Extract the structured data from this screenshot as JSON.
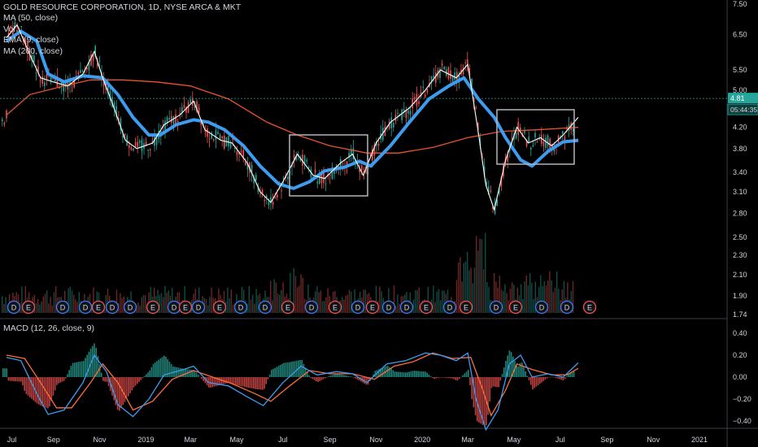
{
  "header": {
    "title": "GOLD RESOURCE CORPORATION, 1D, NYSE ARCA & MKT",
    "indicators": [
      "MA (50, close)",
      "Vol",
      "EMA (9, close)",
      "MA (200, close)"
    ]
  },
  "price_pane": {
    "y_ticks": [
      "7.50",
      "6.50",
      "5.50",
      "5.00",
      "4.20",
      "3.80",
      "3.40",
      "3.10",
      "2.80",
      "2.50",
      "2.30",
      "2.10",
      "1.90",
      "1.74"
    ],
    "last_price": "4.81",
    "countdown": "05:44:35"
  },
  "macd_pane": {
    "label": "MACD (12, 26, close, 9)",
    "y_ticks": [
      "0.40",
      "0.20",
      "0.00",
      "−0.20",
      "−0.40"
    ]
  },
  "x_axis": {
    "labels": [
      "Jul",
      "Sep",
      "Nov",
      "2019",
      "Mar",
      "May",
      "Jul",
      "Sep",
      "Nov",
      "2020",
      "Mar",
      "May",
      "Jul",
      "Sep",
      "Nov",
      "2021"
    ]
  },
  "event_markers": [
    "D",
    "E",
    "D",
    "D",
    "E",
    "D",
    "D",
    "E",
    "D",
    "E",
    "D",
    "E",
    "D",
    "D",
    "E",
    "D",
    "E",
    "D",
    "E",
    "D",
    "D",
    "E",
    "D",
    "E",
    "D",
    "E",
    "D",
    "D",
    "E"
  ],
  "colors": {
    "ma50": "#3d9cf0",
    "ema9": "#ffffff",
    "ma200": "#e8542c",
    "up": "#26a69a",
    "down": "#ef5350",
    "macd_line": "#3d9cf0",
    "signal_line": "#ff6d3a",
    "box": "#b2b5be",
    "price_tag": "#26a69a",
    "dividend_marker": "#3d7bf0",
    "earnings_marker": "#ef5350"
  },
  "chart_data": [
    {
      "type": "line",
      "title": "GOLD RESOURCE CORPORATION, 1D, NYSE ARCA & MKT",
      "x_range": [
        "2018-07",
        "2021-02"
      ],
      "y_scale": "log",
      "ylim": [
        1.74,
        7.5
      ],
      "grid": false,
      "series": [
        {
          "name": "MA (50, close)",
          "values": [
            [
              "2018-07-01",
              6.3
            ],
            [
              "2018-07-20",
              6.6
            ],
            [
              "2018-08-10",
              6.3
            ],
            [
              "2018-08-25",
              5.4
            ],
            [
              "2018-09-15",
              5.2
            ],
            [
              "2018-10-10",
              5.35
            ],
            [
              "2018-11-05",
              5.3
            ],
            [
              "2018-11-25",
              4.9
            ],
            [
              "2018-12-15",
              4.4
            ],
            [
              "2019-01-05",
              4.05
            ],
            [
              "2019-01-20",
              4.05
            ],
            [
              "2019-02-10",
              4.25
            ],
            [
              "2019-03-05",
              4.35
            ],
            [
              "2019-03-25",
              4.3
            ],
            [
              "2019-04-15",
              4.15
            ],
            [
              "2019-05-10",
              3.85
            ],
            [
              "2019-06-01",
              3.5
            ],
            [
              "2019-06-25",
              3.22
            ],
            [
              "2019-07-15",
              3.15
            ],
            [
              "2019-08-05",
              3.25
            ],
            [
              "2019-08-25",
              3.42
            ],
            [
              "2019-09-20",
              3.48
            ],
            [
              "2019-10-10",
              3.58
            ],
            [
              "2019-10-25",
              3.5
            ],
            [
              "2019-11-20",
              3.85
            ],
            [
              "2019-12-15",
              4.3
            ],
            [
              "2020-01-10",
              4.8
            ],
            [
              "2020-02-05",
              5.1
            ],
            [
              "2020-02-25",
              5.3
            ],
            [
              "2020-03-15",
              4.8
            ],
            [
              "2020-04-05",
              4.4
            ],
            [
              "2020-04-20",
              4.0
            ],
            [
              "2020-05-10",
              3.6
            ],
            [
              "2020-05-25",
              3.5
            ],
            [
              "2020-06-15",
              3.75
            ],
            [
              "2020-07-05",
              3.92
            ],
            [
              "2020-07-25",
              3.95
            ]
          ]
        },
        {
          "name": "MA (200, close)",
          "values": [
            [
              "2018-07-01",
              4.45
            ],
            [
              "2018-08-01",
              4.9
            ],
            [
              "2018-09-15",
              5.1
            ],
            [
              "2018-10-20",
              5.25
            ],
            [
              "2018-12-01",
              5.25
            ],
            [
              "2019-01-15",
              5.2
            ],
            [
              "2019-03-01",
              5.1
            ],
            [
              "2019-04-20",
              4.8
            ],
            [
              "2019-06-10",
              4.3
            ],
            [
              "2019-07-20",
              4.05
            ],
            [
              "2019-09-01",
              3.85
            ],
            [
              "2019-10-20",
              3.72
            ],
            [
              "2019-12-01",
              3.72
            ],
            [
              "2020-01-15",
              3.82
            ],
            [
              "2020-03-01",
              4.0
            ],
            [
              "2020-04-15",
              4.12
            ],
            [
              "2020-06-01",
              4.15
            ],
            [
              "2020-07-25",
              4.2
            ]
          ]
        },
        {
          "name": "EMA (9, close)",
          "values": [
            [
              "2018-07-01",
              6.4
            ],
            [
              "2018-07-15",
              6.8
            ],
            [
              "2018-08-01",
              5.9
            ],
            [
              "2018-08-15",
              5.3
            ],
            [
              "2018-09-01",
              5.2
            ],
            [
              "2018-09-20",
              5.1
            ],
            [
              "2018-10-10",
              5.4
            ],
            [
              "2018-10-25",
              6.0
            ],
            [
              "2018-11-05",
              5.3
            ],
            [
              "2018-11-20",
              4.6
            ],
            [
              "2018-12-05",
              3.95
            ],
            [
              "2018-12-20",
              3.8
            ],
            [
              "2019-01-10",
              3.9
            ],
            [
              "2019-01-25",
              4.25
            ],
            [
              "2019-02-15",
              4.45
            ],
            [
              "2019-03-05",
              4.75
            ],
            [
              "2019-03-20",
              4.15
            ],
            [
              "2019-04-10",
              3.95
            ],
            [
              "2019-04-25",
              3.9
            ],
            [
              "2019-05-15",
              3.55
            ],
            [
              "2019-06-01",
              3.1
            ],
            [
              "2019-06-15",
              2.95
            ],
            [
              "2019-07-01",
              3.25
            ],
            [
              "2019-07-20",
              3.7
            ],
            [
              "2019-08-10",
              3.35
            ],
            [
              "2019-08-25",
              3.3
            ],
            [
              "2019-09-15",
              3.55
            ],
            [
              "2019-10-01",
              3.7
            ],
            [
              "2019-10-15",
              3.35
            ],
            [
              "2019-11-01",
              3.9
            ],
            [
              "2019-11-20",
              4.3
            ],
            [
              "2019-12-15",
              4.6
            ],
            [
              "2020-01-05",
              5.0
            ],
            [
              "2020-01-25",
              5.5
            ],
            [
              "2020-02-15",
              5.3
            ],
            [
              "2020-03-01",
              5.65
            ],
            [
              "2020-03-15",
              4.1
            ],
            [
              "2020-03-25",
              3.2
            ],
            [
              "2020-04-05",
              2.85
            ],
            [
              "2020-04-20",
              3.6
            ],
            [
              "2020-05-05",
              4.2
            ],
            [
              "2020-05-20",
              3.9
            ],
            [
              "2020-06-05",
              4.0
            ],
            [
              "2020-06-20",
              3.85
            ],
            [
              "2020-07-05",
              4.05
            ],
            [
              "2020-07-25",
              4.4
            ]
          ]
        }
      ]
    },
    {
      "type": "line",
      "title": "MACD (12, 26, close, 9)",
      "x_range": [
        "2018-07",
        "2021-02"
      ],
      "ylim": [
        -0.45,
        0.45
      ],
      "y_ticks": [
        0.4,
        0.2,
        0.0,
        -0.2,
        -0.4
      ],
      "series": [
        {
          "name": "MACD",
          "values": [
            [
              "2018-07-01",
              0.18
            ],
            [
              "2018-07-20",
              0.15
            ],
            [
              "2018-08-10",
              -0.15
            ],
            [
              "2018-08-25",
              -0.34
            ],
            [
              "2018-09-15",
              -0.3
            ],
            [
              "2018-10-10",
              -0.05
            ],
            [
              "2018-10-25",
              0.2
            ],
            [
              "2018-11-10",
              0.05
            ],
            [
              "2018-11-25",
              -0.25
            ],
            [
              "2018-12-15",
              -0.36
            ],
            [
              "2019-01-05",
              -0.2
            ],
            [
              "2019-01-25",
              0.02
            ],
            [
              "2019-02-20",
              0.07
            ],
            [
              "2019-03-05",
              0.1
            ],
            [
              "2019-03-25",
              -0.05
            ],
            [
              "2019-04-20",
              -0.08
            ],
            [
              "2019-05-15",
              -0.18
            ],
            [
              "2019-06-05",
              -0.26
            ],
            [
              "2019-07-01",
              -0.05
            ],
            [
              "2019-07-25",
              0.1
            ],
            [
              "2019-08-15",
              0.02
            ],
            [
              "2019-09-10",
              0.05
            ],
            [
              "2019-10-01",
              0.03
            ],
            [
              "2019-10-20",
              -0.05
            ],
            [
              "2019-11-15",
              0.12
            ],
            [
              "2019-12-10",
              0.15
            ],
            [
              "2020-01-05",
              0.22
            ],
            [
              "2020-01-25",
              0.2
            ],
            [
              "2020-02-15",
              0.15
            ],
            [
              "2020-03-01",
              0.22
            ],
            [
              "2020-03-12",
              -0.2
            ],
            [
              "2020-03-25",
              -0.48
            ],
            [
              "2020-04-10",
              -0.3
            ],
            [
              "2020-04-25",
              0.12
            ],
            [
              "2020-05-10",
              0.2
            ],
            [
              "2020-05-25",
              0.0
            ],
            [
              "2020-06-15",
              0.03
            ],
            [
              "2020-07-05",
              0.0
            ],
            [
              "2020-07-25",
              0.13
            ]
          ]
        },
        {
          "name": "Signal",
          "values": [
            [
              "2018-07-01",
              0.2
            ],
            [
              "2018-07-25",
              0.17
            ],
            [
              "2018-08-15",
              -0.05
            ],
            [
              "2018-09-05",
              -0.28
            ],
            [
              "2018-09-25",
              -0.28
            ],
            [
              "2018-10-20",
              -0.05
            ],
            [
              "2018-11-05",
              0.12
            ],
            [
              "2018-11-25",
              -0.05
            ],
            [
              "2018-12-15",
              -0.3
            ],
            [
              "2019-01-10",
              -0.22
            ],
            [
              "2019-02-05",
              -0.02
            ],
            [
              "2019-03-05",
              0.06
            ],
            [
              "2019-03-30",
              0.0
            ],
            [
              "2019-04-25",
              -0.06
            ],
            [
              "2019-05-25",
              -0.15
            ],
            [
              "2019-06-15",
              -0.22
            ],
            [
              "2019-07-10",
              -0.08
            ],
            [
              "2019-08-05",
              0.06
            ],
            [
              "2019-09-01",
              0.03
            ],
            [
              "2019-10-01",
              0.03
            ],
            [
              "2019-10-30",
              -0.02
            ],
            [
              "2019-11-25",
              0.1
            ],
            [
              "2019-12-20",
              0.14
            ],
            [
              "2020-01-15",
              0.22
            ],
            [
              "2020-02-10",
              0.17
            ],
            [
              "2020-03-05",
              0.18
            ],
            [
              "2020-03-20",
              -0.1
            ],
            [
              "2020-04-01",
              -0.35
            ],
            [
              "2020-04-20",
              -0.12
            ],
            [
              "2020-05-05",
              0.12
            ],
            [
              "2020-05-25",
              0.07
            ],
            [
              "2020-06-20",
              0.02
            ],
            [
              "2020-07-10",
              0.02
            ],
            [
              "2020-07-25",
              0.08
            ]
          ]
        }
      ]
    }
  ]
}
